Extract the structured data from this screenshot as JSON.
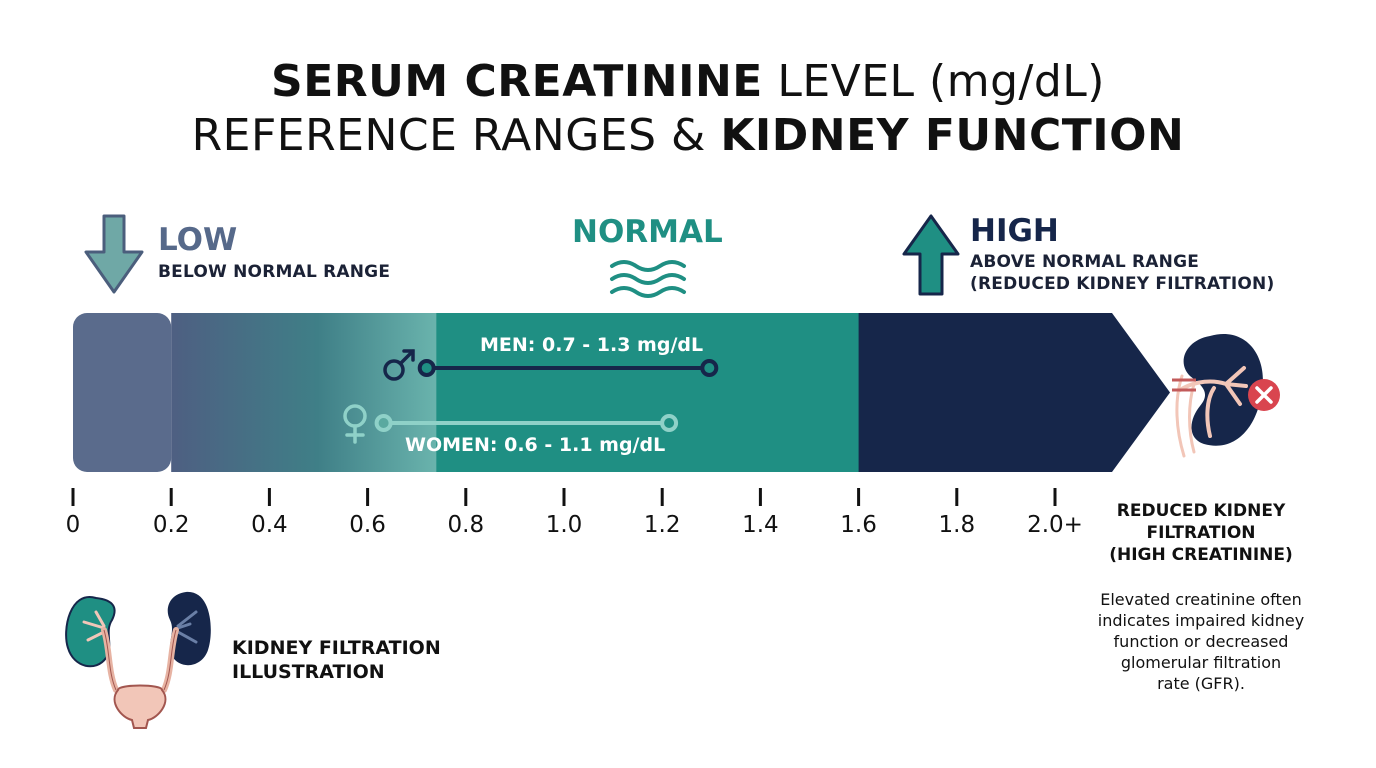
{
  "title": {
    "line1_bold": "SERUM CREATININE",
    "line1_rest": " LEVEL (mg/dL)",
    "line2_rest": "REFERENCE RANGES & ",
    "line2_bold": "KIDNEY FUNCTION"
  },
  "zones": {
    "low": {
      "label": "LOW",
      "desc": "BELOW NORMAL RANGE",
      "color": "#5a6b8c"
    },
    "normal": {
      "label": "NORMAL",
      "color": "#1f8f83"
    },
    "high": {
      "label": "HIGH",
      "desc_line1": "ABOVE NORMAL RANGE",
      "desc_line2": "(REDUCED KIDNEY FILTRATION)",
      "color": "#16264a"
    }
  },
  "scale": {
    "min": 0,
    "max": 2.0,
    "ticks": [
      {
        "value": 0,
        "label": "0"
      },
      {
        "value": 0.2,
        "label": "0.2"
      },
      {
        "value": 0.4,
        "label": "0.4"
      },
      {
        "value": 0.6,
        "label": "0.6"
      },
      {
        "value": 0.8,
        "label": "0.8"
      },
      {
        "value": 1.0,
        "label": "1.0"
      },
      {
        "value": 1.2,
        "label": "1.2"
      },
      {
        "value": 1.4,
        "label": "1.4"
      },
      {
        "value": 1.6,
        "label": "1.6"
      },
      {
        "value": 1.8,
        "label": "1.8"
      },
      {
        "value": 2.0,
        "label": "2.0+"
      }
    ],
    "normal_start": 0.74,
    "high_start": 1.6
  },
  "ranges": {
    "men": {
      "label": "MEN: 0.7 - 1.3 mg/dL",
      "min": 0.7,
      "max": 1.3,
      "symbol": "♂",
      "color": "#16264a"
    },
    "women": {
      "label": "WOMEN: 0.6 - 1.1 mg/dL",
      "min": 0.6,
      "max": 1.1,
      "symbol": "♀",
      "color": "#8fd1c8"
    }
  },
  "side_panel": {
    "title_line1": "REDUCED KIDNEY",
    "title_line2": "FILTRATION",
    "title_line3": "(HIGH CREATININE)",
    "body_line1": "Elevated creatinine often",
    "body_line2": "indicates impaired kidney",
    "body_line3": "function or decreased",
    "body_line4": "glomerular filtration",
    "body_line5": "rate (GFR)."
  },
  "illustration": {
    "label_line1": "KIDNEY FILTRATION",
    "label_line2": "ILLUSTRATION"
  },
  "icons": {
    "low": "arrow-down-icon",
    "normal": "waves-icon",
    "high": "arrow-up-icon",
    "male": "male-symbol-icon",
    "female": "female-symbol-icon",
    "damaged_kidney": "damaged-kidney-icon",
    "error": "error-x-icon",
    "urinary_system": "urinary-system-icon"
  }
}
